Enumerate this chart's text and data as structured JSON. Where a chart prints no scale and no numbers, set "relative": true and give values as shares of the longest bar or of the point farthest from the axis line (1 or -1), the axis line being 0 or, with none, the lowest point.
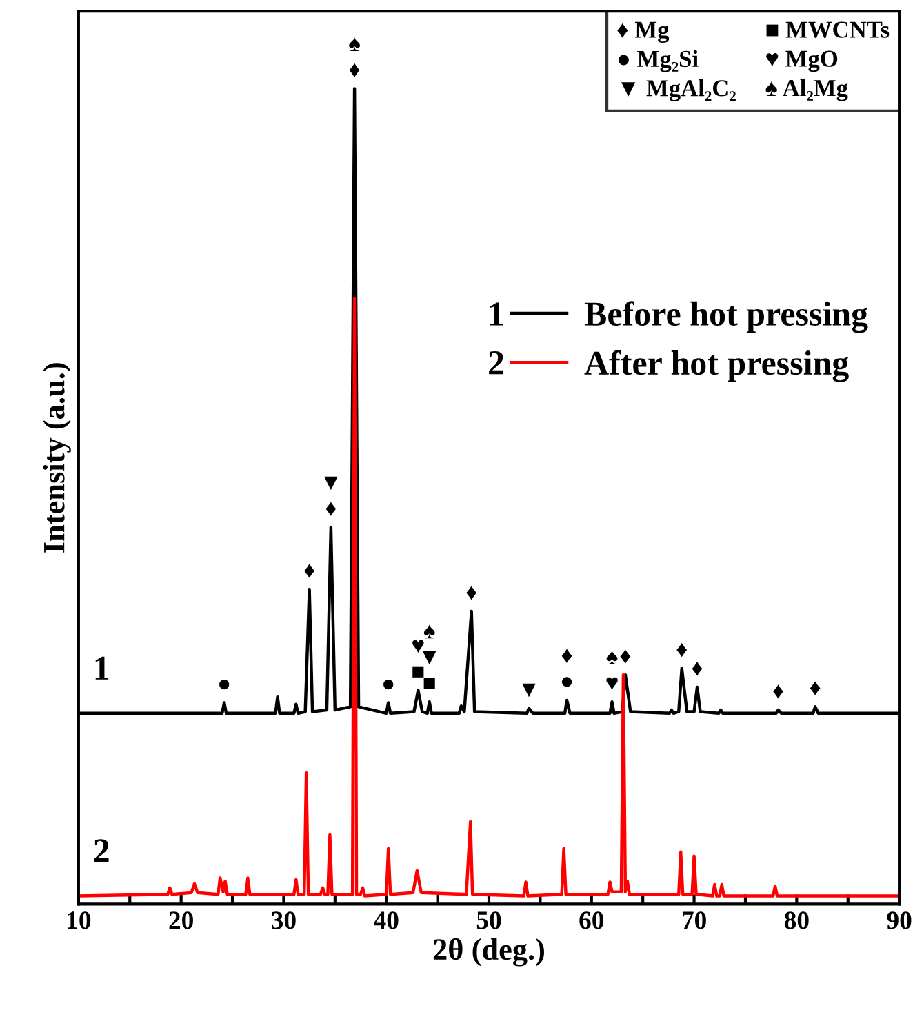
{
  "chart_data": {
    "type": "line",
    "relative": true,
    "xlabel": "2θ (deg.)",
    "ylabel": "Intensity (a.u.)",
    "xlim": [
      10,
      90
    ],
    "xticks": [
      10,
      {
        "value": 15,
        "label": null
      },
      20,
      {
        "value": 25,
        "label": null
      },
      30,
      {
        "value": 35,
        "label": null
      },
      40,
      {
        "value": 45,
        "label": null
      },
      50,
      {
        "value": 55,
        "label": null
      },
      60,
      {
        "value": 65,
        "label": null
      },
      70,
      {
        "value": 75,
        "label": null
      },
      80,
      {
        "value": 85,
        "label": null
      },
      90
    ],
    "tick_labels": "x",
    "grid": false,
    "legend": "right",
    "marker": "none",
    "line_style": "solid",
    "series": [
      {
        "name": "Before hot pressing",
        "color": "#000000",
        "x": [
          10,
          24.0,
          24.2,
          24.4,
          29.2,
          29.4,
          29.6,
          31.0,
          31.2,
          31.4,
          32.1,
          32.5,
          32.8,
          34.2,
          34.6,
          35.0,
          36.5,
          36.9,
          37.3,
          40.0,
          40.2,
          40.4,
          42.7,
          43.1,
          43.5,
          44.0,
          44.2,
          44.4,
          47.1,
          47.3,
          47.6,
          48.3,
          48.6,
          53.7,
          53.9,
          54.3,
          57.4,
          57.6,
          57.9,
          61.8,
          62.0,
          62.2,
          63.0,
          63.3,
          63.8,
          67.6,
          67.8,
          68.0,
          68.5,
          68.8,
          69.3,
          70.0,
          70.3,
          70.6,
          72.4,
          72.6,
          72.8,
          78.0,
          78.2,
          78.5,
          81.6,
          81.8,
          82.1,
          90
        ],
        "values": [
          0.234,
          0.234,
          0.247,
          0.234,
          0.234,
          0.254,
          0.234,
          0.234,
          0.245,
          0.234,
          0.236,
          0.386,
          0.236,
          0.238,
          0.462,
          0.238,
          0.242,
          1,
          0.242,
          0.234,
          0.247,
          0.234,
          0.236,
          0.262,
          0.236,
          0.234,
          0.248,
          0.234,
          0.234,
          0.243,
          0.236,
          0.359,
          0.236,
          0.234,
          0.24,
          0.234,
          0.234,
          0.25,
          0.234,
          0.234,
          0.248,
          0.234,
          0.236,
          0.281,
          0.236,
          0.234,
          0.238,
          0.234,
          0.236,
          0.289,
          0.236,
          0.236,
          0.266,
          0.236,
          0.234,
          0.238,
          0.234,
          0.234,
          0.238,
          0.234,
          0.234,
          0.242,
          0.234,
          0.234
        ]
      },
      {
        "name": "After hot pressing",
        "color": "#ff0000",
        "x": [
          10,
          18.7,
          18.9,
          19.1,
          21.0,
          21.3,
          21.6,
          23.6,
          23.8,
          24.1,
          24.3,
          24.5,
          26.3,
          26.5,
          26.7,
          31.0,
          31.2,
          31.4,
          32.0,
          32.2,
          32.4,
          33.6,
          33.8,
          34.0,
          34.3,
          34.5,
          34.7,
          36.7,
          36.9,
          37.1,
          37.5,
          37.7,
          37.9,
          40.0,
          40.2,
          40.4,
          42.6,
          43.0,
          43.4,
          47.8,
          48.2,
          48.4,
          53.4,
          53.6,
          53.8,
          57.1,
          57.3,
          57.5,
          61.6,
          61.8,
          62.0,
          62.9,
          63.1,
          63.3,
          63.5,
          63.7,
          68.5,
          68.7,
          68.9,
          69.8,
          70.0,
          70.2,
          71.8,
          72.0,
          72.2,
          72.5,
          72.7,
          72.9,
          77.7,
          77.9,
          78.1,
          90
        ],
        "values": [
          0.01,
          0.012,
          0.02,
          0.012,
          0.014,
          0.025,
          0.014,
          0.012,
          0.032,
          0.015,
          0.028,
          0.012,
          0.012,
          0.032,
          0.012,
          0.012,
          0.03,
          0.012,
          0.012,
          0.161,
          0.012,
          0.012,
          0.02,
          0.012,
          0.012,
          0.085,
          0.012,
          0.012,
          0.743,
          0.012,
          0.012,
          0.02,
          0.01,
          0.012,
          0.068,
          0.012,
          0.014,
          0.041,
          0.014,
          0.012,
          0.101,
          0.012,
          0.01,
          0.027,
          0.01,
          0.012,
          0.068,
          0.012,
          0.012,
          0.027,
          0.015,
          0.015,
          0.281,
          0.015,
          0.028,
          0.012,
          0.012,
          0.064,
          0.012,
          0.012,
          0.059,
          0.012,
          0.01,
          0.024,
          0.01,
          0.01,
          0.024,
          0.01,
          0.01,
          0.022,
          0.01,
          0.01
        ]
      }
    ],
    "annotations": [
      "1",
      "2",
      "♦ Mg",
      "■ MWCNTs",
      "● Mg₂Si",
      "♥ MgO",
      "▼ MgAl₂C₂",
      "♠ Al₂Mg",
      {
        "text": "♦",
        "x": 36.9,
        "y": 1
      },
      {
        "text": "♠",
        "x": 36.9,
        "y": 1
      },
      {
        "text": "♦",
        "x": 34.6,
        "y": 0.462
      },
      {
        "text": "▼",
        "x": 34.6,
        "y": 0.462
      },
      {
        "text": "♦",
        "x": 32.5,
        "y": 0.386
      },
      {
        "text": "●",
        "x": 24.2,
        "y": 0.247
      },
      {
        "text": "●",
        "x": 40.2,
        "y": 0.247
      },
      {
        "text": "■",
        "x": 43.1,
        "y": 0.262
      },
      {
        "text": "♥",
        "x": 43.1,
        "y": 0.262
      },
      {
        "text": "■",
        "x": 44.2,
        "y": 0.248
      },
      {
        "text": "▼",
        "x": 44.2,
        "y": 0.248
      },
      {
        "text": "♠",
        "x": 44.2,
        "y": 0.248
      },
      {
        "text": "♦",
        "x": 48.3,
        "y": 0.359
      },
      {
        "text": "▼",
        "x": 53.9,
        "y": 0.24
      },
      {
        "text": "●",
        "x": 57.6,
        "y": 0.25
      },
      {
        "text": "♦",
        "x": 57.6,
        "y": 0.25
      },
      {
        "text": "♥",
        "x": 62.0,
        "y": 0.248
      },
      {
        "text": "♠",
        "x": 62.0,
        "y": 0.248
      },
      {
        "text": "♦",
        "x": 63.3,
        "y": 0.281
      },
      {
        "text": "♦",
        "x": 68.8,
        "y": 0.289
      },
      {
        "text": "♦",
        "x": 70.3,
        "y": 0.266
      },
      {
        "text": "♦",
        "x": 78.2,
        "y": 0.238
      },
      {
        "text": "♦",
        "x": 81.8,
        "y": 0.242
      }
    ]
  }
}
